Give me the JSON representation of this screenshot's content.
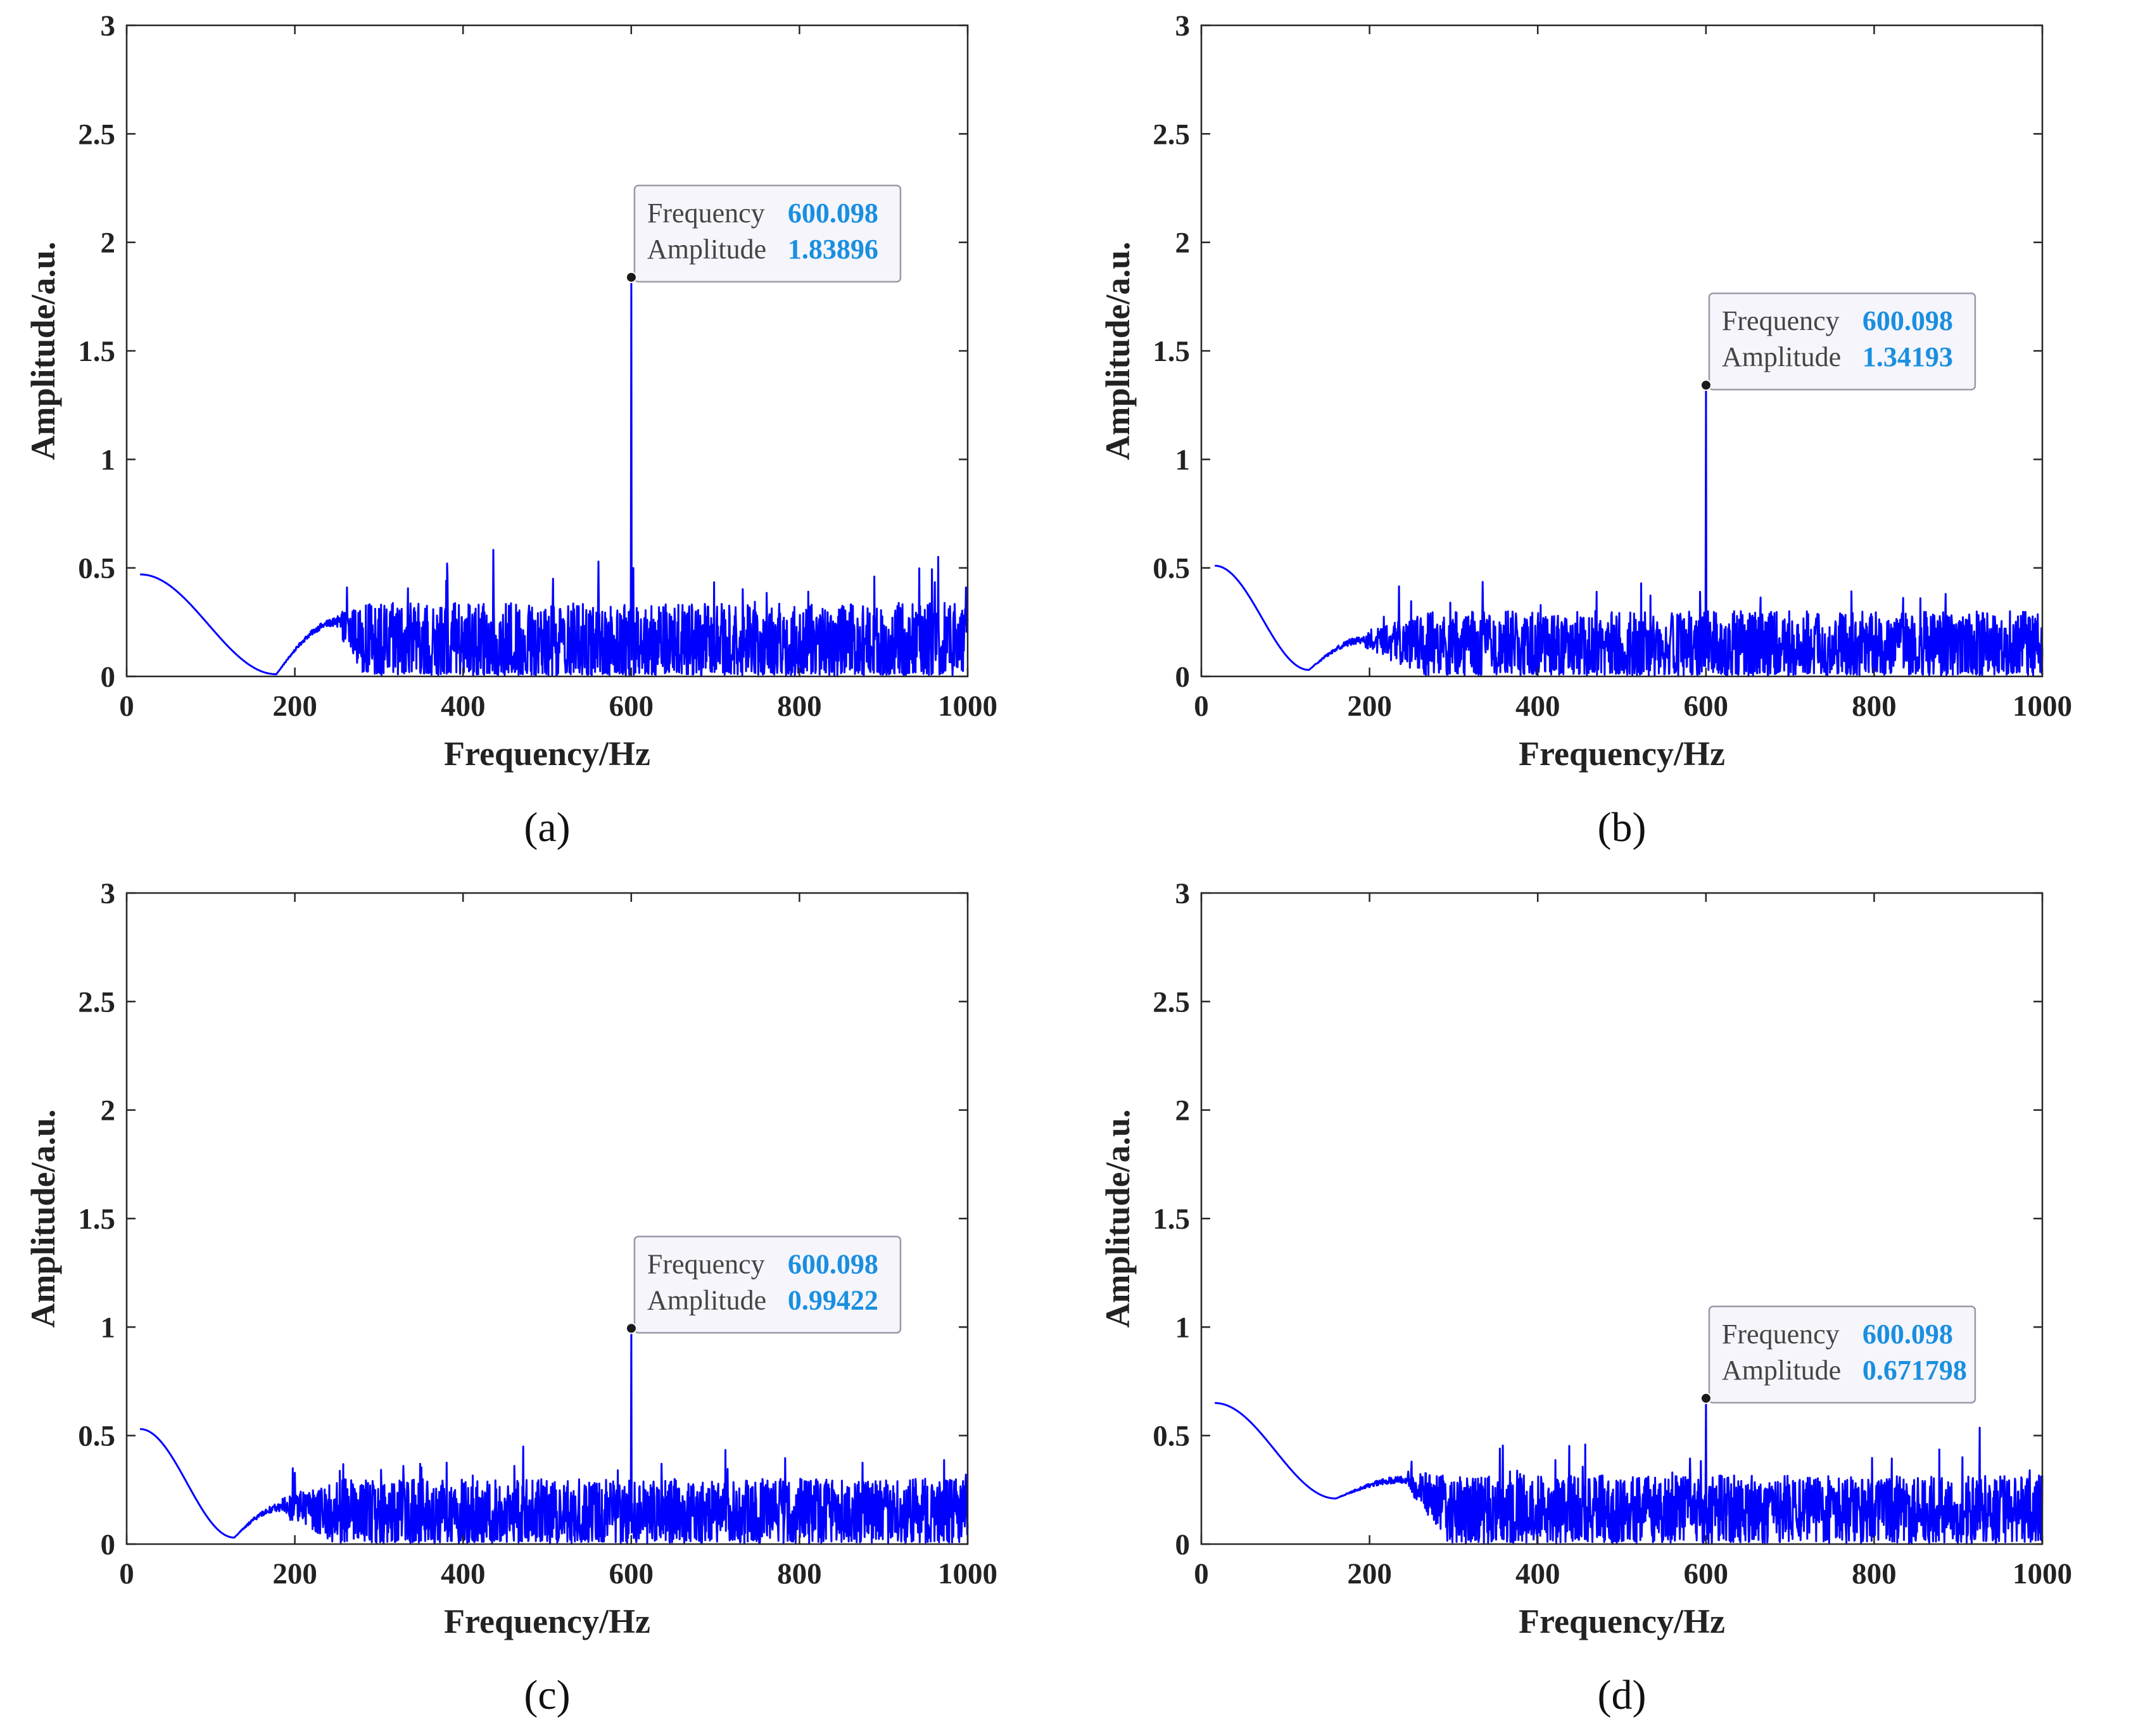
{
  "chart_data": [
    {
      "type": "line",
      "panel": "(a)",
      "panel_letter": "a",
      "xlabel": "Frequency/Hz",
      "ylabel": "Amplitude/a.u.",
      "xlim": [
        0,
        1000
      ],
      "ylim": [
        0,
        3
      ],
      "xticks": [
        0,
        200,
        400,
        600,
        800,
        1000
      ],
      "yticks": [
        0,
        0.5,
        1,
        1.5,
        2,
        2.5,
        3
      ],
      "ytick_labels": [
        "0",
        "0.5",
        "1",
        "1.5",
        "2",
        "2.5",
        "3"
      ],
      "grid": false,
      "series_color": "#0000ff",
      "shape": {
        "start_amp": 0.47,
        "dip_freq": 178,
        "dip_amp": 0.01,
        "hump_freq": 250,
        "hump_amp": 0.25,
        "noise_start_freq": 260,
        "noise_mean": 0.15,
        "noise_max": 0.42
      },
      "outlier_peaks": [
        [
          381,
          0.52
        ],
        [
          507,
          0.45
        ],
        [
          889,
          0.46
        ],
        [
          998,
          0.41
        ],
        [
          262,
          0.41
        ]
      ],
      "datatip": {
        "freq_label": "Frequency",
        "freq_value": "600.098",
        "amp_label": "Amplitude",
        "amp_value": "1.83896",
        "x": 600.098,
        "y": 1.83896
      }
    },
    {
      "type": "line",
      "panel": "(b)",
      "panel_letter": "b",
      "xlabel": "Frequency/Hz",
      "ylabel": "Amplitude/a.u.",
      "xlim": [
        0,
        1000
      ],
      "ylim": [
        0,
        3
      ],
      "xticks": [
        0,
        200,
        400,
        600,
        800,
        1000
      ],
      "yticks": [
        0,
        0.5,
        1,
        1.5,
        2,
        2.5,
        3
      ],
      "ytick_labels": [
        "0",
        "0.5",
        "1",
        "1.5",
        "2",
        "2.5",
        "3"
      ],
      "grid": false,
      "series_color": "#0000ff",
      "shape": {
        "start_amp": 0.51,
        "dip_freq": 128,
        "dip_amp": 0.03,
        "hump_freq": 195,
        "hump_amp": 0.17,
        "noise_start_freq": 245,
        "noise_mean": 0.14,
        "noise_max": 0.36
      },
      "outlier_peaks": [
        [
          470,
          0.39
        ],
        [
          593,
          0.39
        ],
        [
          855,
          0.36
        ],
        [
          885,
          0.38
        ],
        [
          296,
          0.34
        ]
      ],
      "datatip": {
        "freq_label": "Frequency",
        "freq_value": "600.098",
        "amp_label": "Amplitude",
        "amp_value": "1.34193",
        "x": 600.098,
        "y": 1.34193
      }
    },
    {
      "type": "line",
      "panel": "(c)",
      "panel_letter": "c",
      "xlabel": "Frequency/Hz",
      "ylabel": "Amplitude/a.u.",
      "xlim": [
        0,
        1000
      ],
      "ylim": [
        0,
        3
      ],
      "xticks": [
        0,
        200,
        400,
        600,
        800,
        1000
      ],
      "yticks": [
        0,
        0.5,
        1,
        1.5,
        2,
        2.5,
        3
      ],
      "ytick_labels": [
        "0",
        "0.5",
        "1",
        "1.5",
        "2",
        "2.5",
        "3"
      ],
      "grid": false,
      "series_color": "#0000ff",
      "shape": {
        "start_amp": 0.53,
        "dip_freq": 128,
        "dip_amp": 0.03,
        "hump_freq": 185,
        "hump_amp": 0.17,
        "noise_start_freq": 230,
        "noise_mean": 0.14,
        "noise_max": 0.36
      },
      "outlier_peaks": [
        [
          329,
          0.36
        ],
        [
          349,
          0.37
        ],
        [
          584,
          0.34
        ],
        [
          636,
          0.37
        ],
        [
          998,
          0.32
        ]
      ],
      "datatip": {
        "freq_label": "Frequency",
        "freq_value": "600.098",
        "amp_label": "Amplitude",
        "amp_value": "0.99422",
        "x": 600.098,
        "y": 0.99422
      }
    },
    {
      "type": "line",
      "panel": "(d)",
      "panel_letter": "d",
      "xlabel": "Frequency/Hz",
      "ylabel": "Amplitude/a.u.",
      "xlim": [
        0,
        1000
      ],
      "ylim": [
        0,
        3
      ],
      "xticks": [
        0,
        200,
        400,
        600,
        800,
        1000
      ],
      "yticks": [
        0,
        0.5,
        1,
        1.5,
        2,
        2.5,
        3
      ],
      "ytick_labels": [
        "0",
        "0.5",
        "1",
        "1.5",
        "2",
        "2.5",
        "3"
      ],
      "grid": false,
      "series_color": "#0000ff",
      "shape": {
        "start_amp": 0.65,
        "dip_freq": 160,
        "dip_amp": 0.21,
        "hump_freq": 245,
        "hump_amp": 0.3,
        "noise_start_freq": 265,
        "noise_mean": 0.15,
        "noise_max": 0.38
      },
      "outlier_peaks": [
        [
          355,
          0.44
        ],
        [
          250,
          0.38
        ],
        [
          905,
          0.4
        ],
        [
          985,
          0.34
        ],
        [
          560,
          0.33
        ]
      ],
      "datatip": {
        "freq_label": "Frequency",
        "freq_value": "600.098",
        "amp_label": "Amplitude",
        "amp_value": "0.671798",
        "x": 600.098,
        "y": 0.671798
      }
    }
  ]
}
